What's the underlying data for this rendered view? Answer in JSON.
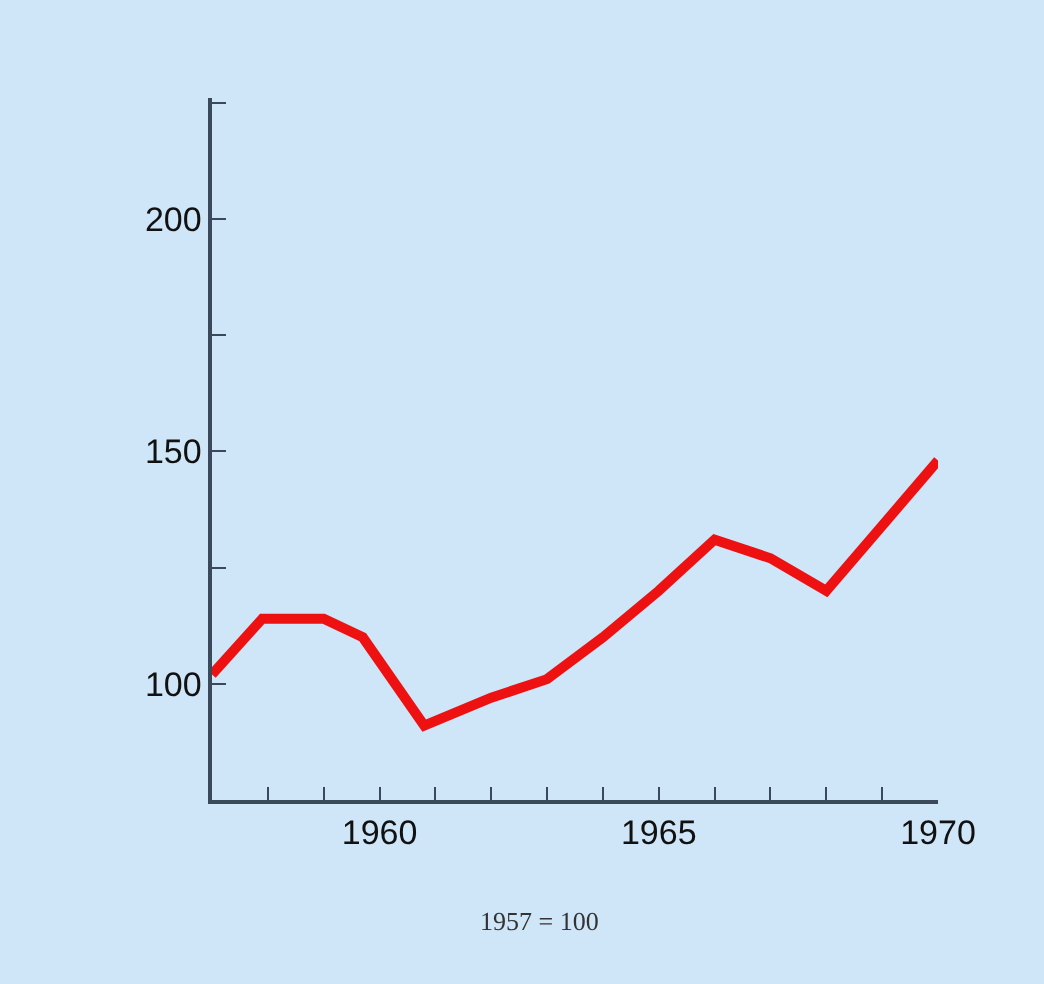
{
  "chart_data": {
    "type": "line",
    "x": [
      1957,
      1957.9,
      1959,
      1959.7,
      1960.8,
      1962,
      1963,
      1964,
      1965,
      1966,
      1967,
      1968,
      1969,
      1970
    ],
    "series": [
      {
        "color": "#ee1111",
        "values": [
          102,
          114,
          114,
          110,
          91,
          97,
          101,
          110,
          120,
          131,
          127,
          120,
          134,
          148
        ]
      }
    ],
    "xlim": [
      1957,
      1970
    ],
    "ylim": [
      75,
      226
    ],
    "xticks": [
      {
        "value": 1957,
        "label": null
      },
      {
        "value": 1958,
        "label": null
      },
      {
        "value": 1959,
        "label": null
      },
      1960,
      {
        "value": 1961,
        "label": null
      },
      {
        "value": 1962,
        "label": null
      },
      {
        "value": 1963,
        "label": null
      },
      {
        "value": 1964,
        "label": null
      },
      1965,
      {
        "value": 1966,
        "label": null
      },
      {
        "value": 1967,
        "label": null
      },
      {
        "value": 1968,
        "label": null
      },
      {
        "value": 1969,
        "label": null
      },
      1970
    ],
    "yticks": [
      100,
      {
        "value": 125,
        "label": null
      },
      150,
      {
        "value": 175,
        "label": null
      },
      200,
      {
        "value": 225,
        "label": null
      }
    ],
    "grid": false,
    "marker": "none",
    "line_style": "solid",
    "annotations": [
      "1957 = 100"
    ]
  }
}
